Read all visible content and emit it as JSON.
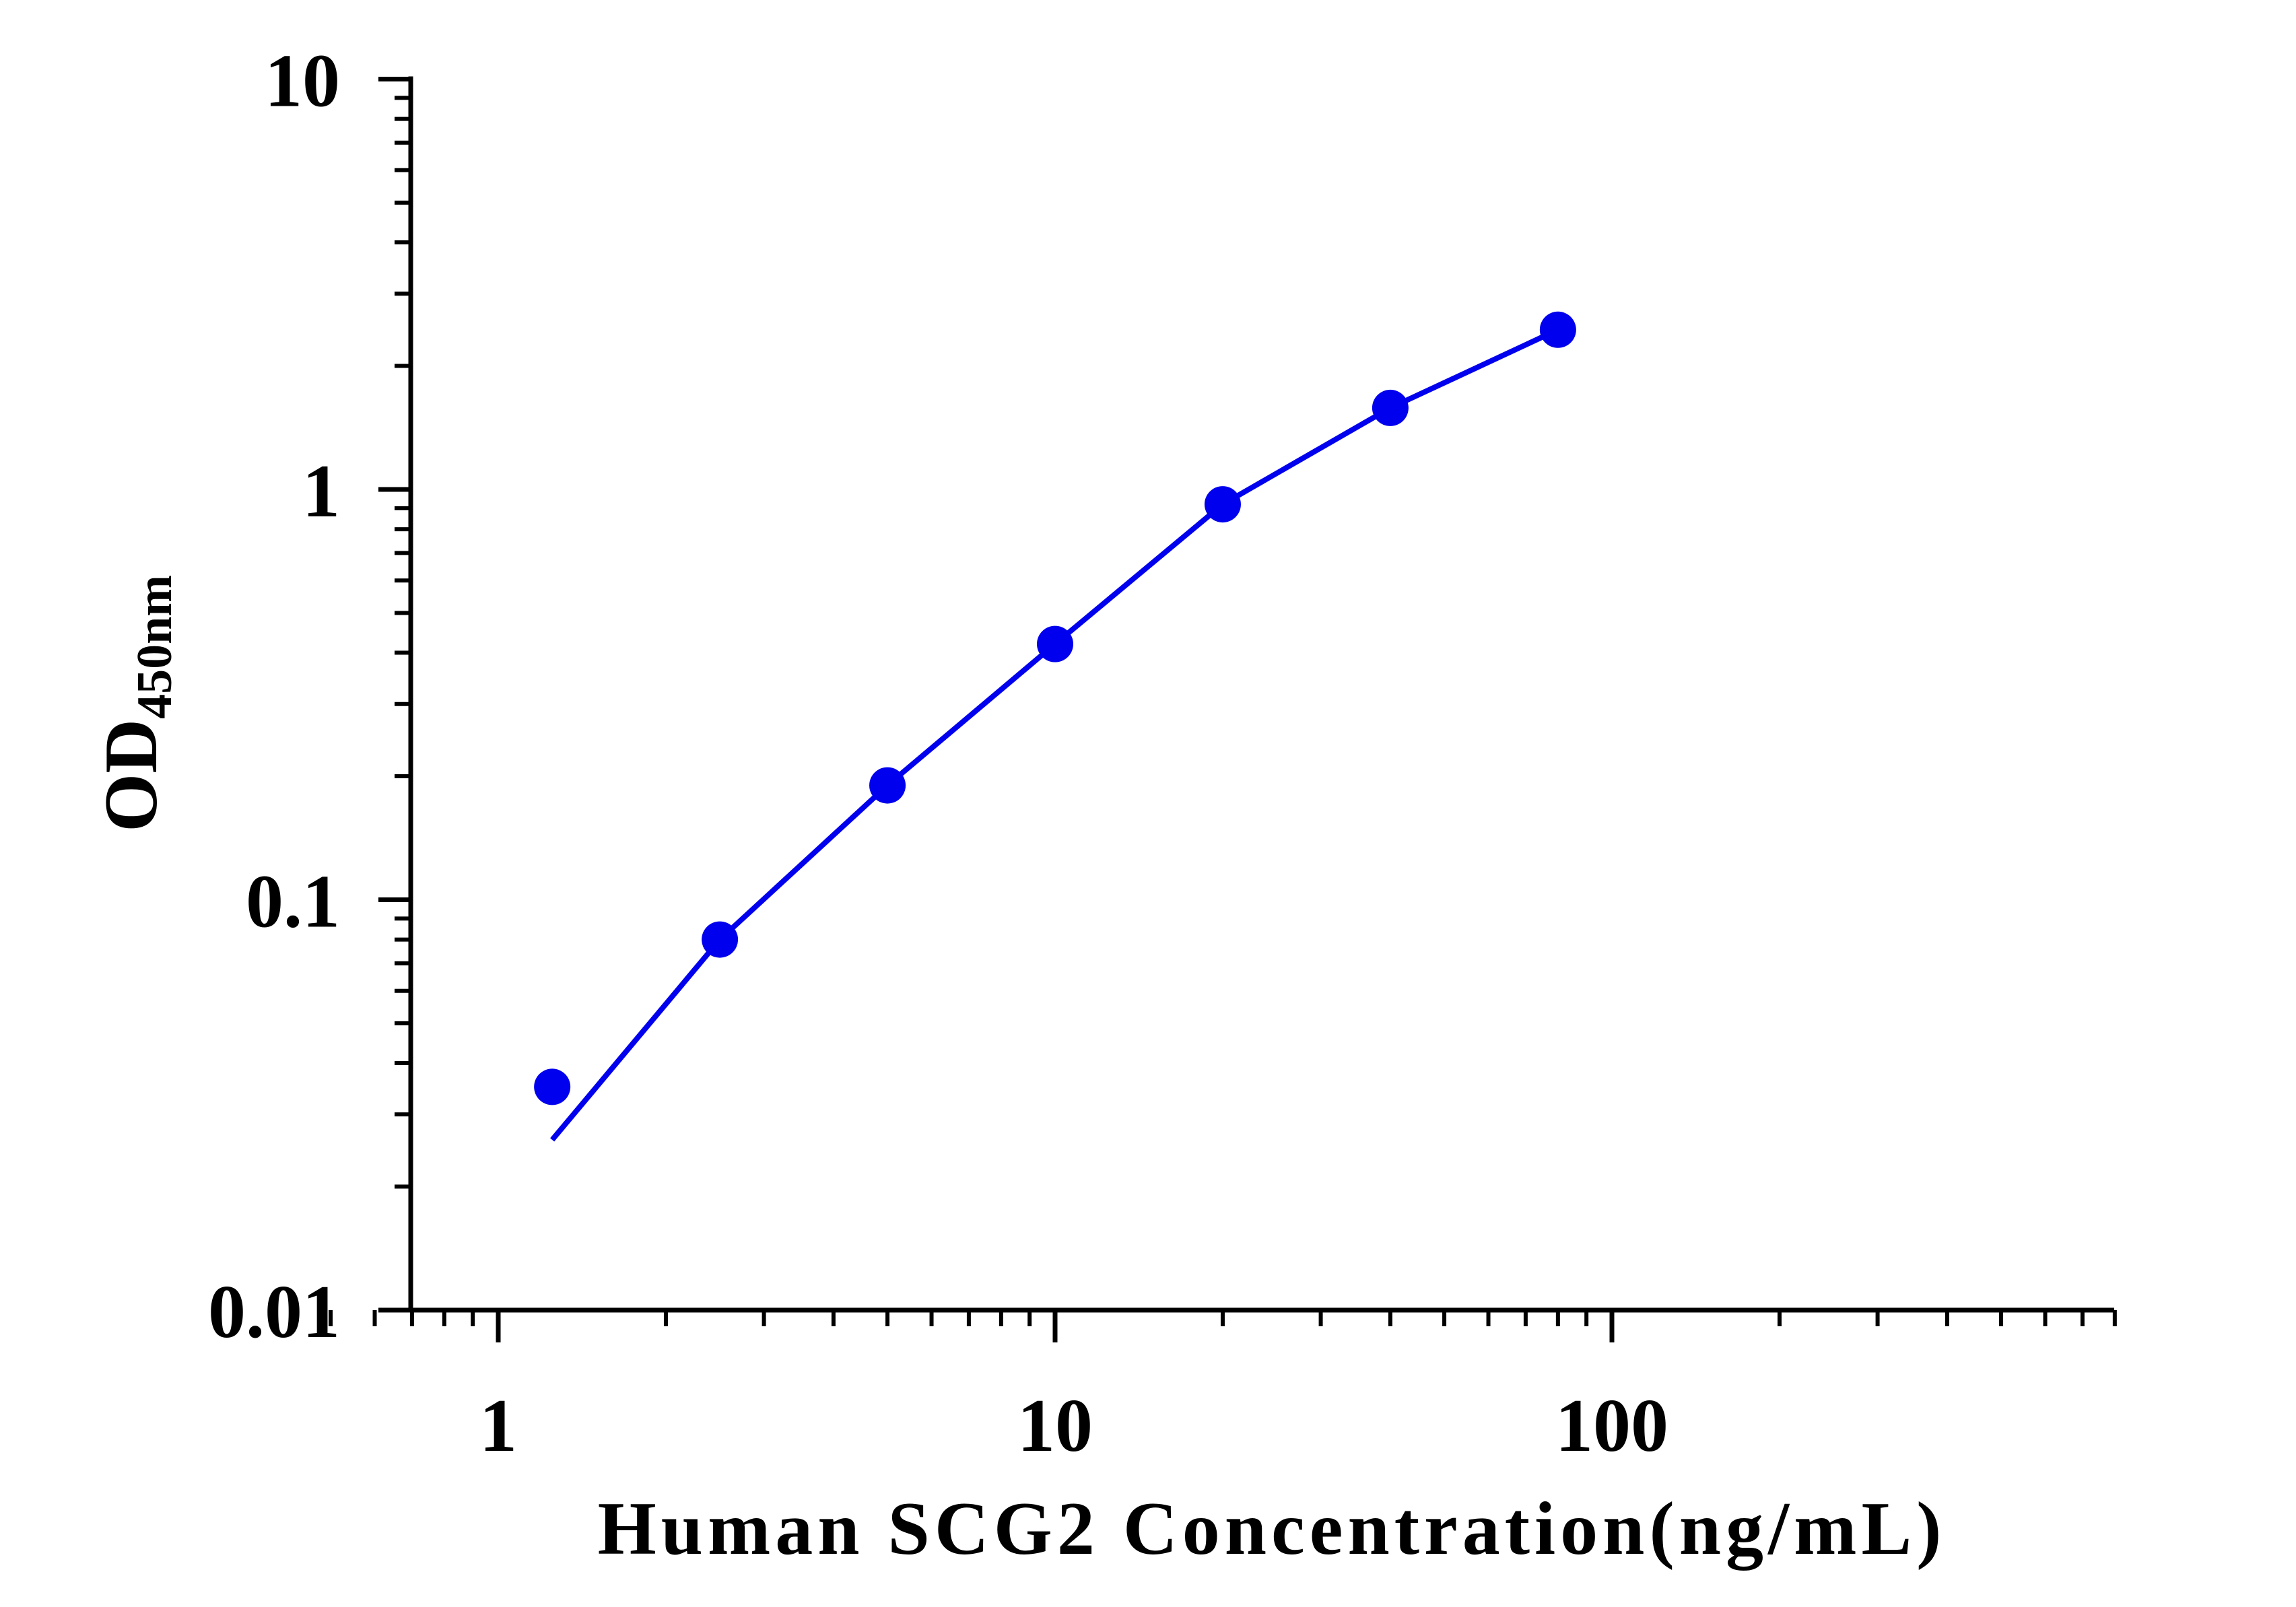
{
  "chart_data": {
    "type": "scatter",
    "title": "",
    "xlabel": "Human SCG2 Concentration(ng/mL)",
    "ylabel": {
      "main": "OD",
      "subscript": "450nm"
    },
    "x_scale": "log",
    "y_scale": "log",
    "xlim": [
      0.5,
      800
    ],
    "ylim": [
      0.01,
      10
    ],
    "x_ticks": [
      {
        "value": 1,
        "label": "1"
      },
      {
        "value": 10,
        "label": "10"
      },
      {
        "value": 100,
        "label": "100"
      }
    ],
    "y_ticks": [
      {
        "value": 0.01,
        "label": "0.01"
      },
      {
        "value": 0.1,
        "label": "0.1"
      },
      {
        "value": 1,
        "label": "1"
      },
      {
        "value": 10,
        "label": "10"
      }
    ],
    "grid": false,
    "legend": "none",
    "series": [
      {
        "kind": "points",
        "x": [
          1.25,
          2.5,
          5,
          10,
          20,
          40,
          80
        ],
        "y": [
          0.035,
          0.08,
          0.19,
          0.42,
          0.92,
          1.58,
          2.45
        ]
      },
      {
        "kind": "fit-line",
        "x": [
          1.25,
          2.5,
          5,
          10,
          20,
          40,
          80
        ],
        "y": [
          0.026,
          0.08,
          0.19,
          0.42,
          0.92,
          1.58,
          2.45
        ]
      }
    ],
    "colors": {
      "series": "#0000ee",
      "axis": "#000000"
    }
  }
}
